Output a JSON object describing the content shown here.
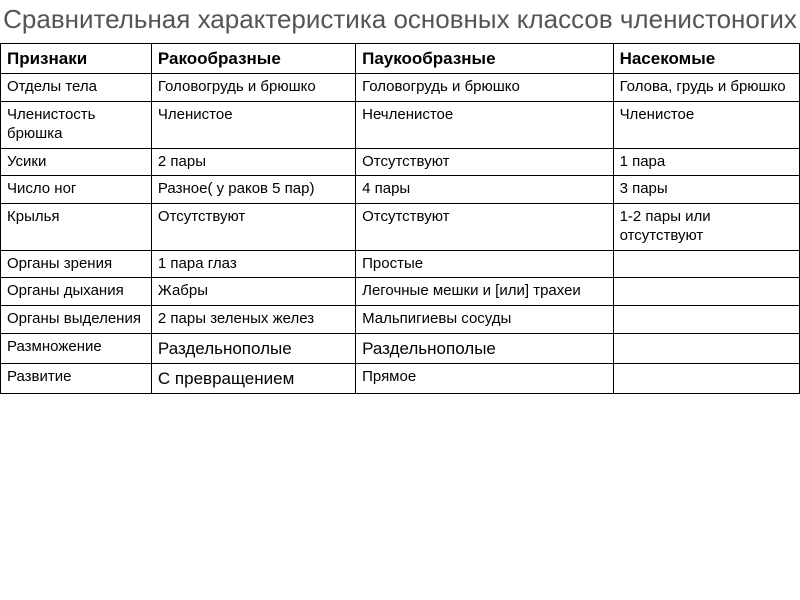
{
  "title": "Сравнительная характеристика основных классов членистоногих",
  "table": {
    "type": "table",
    "columns": [
      "Признаки",
      "Ракообразные",
      "Паукообразные",
      "Насекомые"
    ],
    "rows": [
      [
        "Отделы тела",
        "Головогрудь и брюшко",
        "Головогрудь и брюшко",
        "Голова, грудь и брюшко"
      ],
      [
        "Членистость брюшка",
        "Членистое",
        "Нечленистое",
        "Членистое"
      ],
      [
        "Усики",
        "2 пары",
        "Отсутствуют",
        "1 пара"
      ],
      [
        "Число ног",
        "Разное( у раков 5 пар)",
        "4 пары",
        "3 пары"
      ],
      [
        "Крылья",
        "Отсутствуют",
        "Отсутствуют",
        "1-2 пары или отсутствуют"
      ],
      [
        "Органы зрения",
        "1 пара глаз",
        "Простые",
        ""
      ],
      [
        "Органы дыхания",
        "Жабры",
        "Легочные мешки и  [или] трахеи",
        ""
      ],
      [
        "Органы выделения",
        "2 пары зеленых желез",
        "Мальпигиевы сосуды",
        ""
      ],
      [
        "Размножение",
        "Раздельнополые",
        "Раздельнополые",
        ""
      ],
      [
        "Развитие",
        "С превращением",
        "Прямое",
        ""
      ]
    ],
    "column_widths_pct": [
      17,
      23,
      29,
      21
    ],
    "border_color": "#000000",
    "background_color": "#ffffff",
    "header_font_weight": "bold",
    "header_fontsize": 17,
    "cell_fontsize": 15,
    "title_fontsize": 26,
    "title_color": "#555555"
  }
}
